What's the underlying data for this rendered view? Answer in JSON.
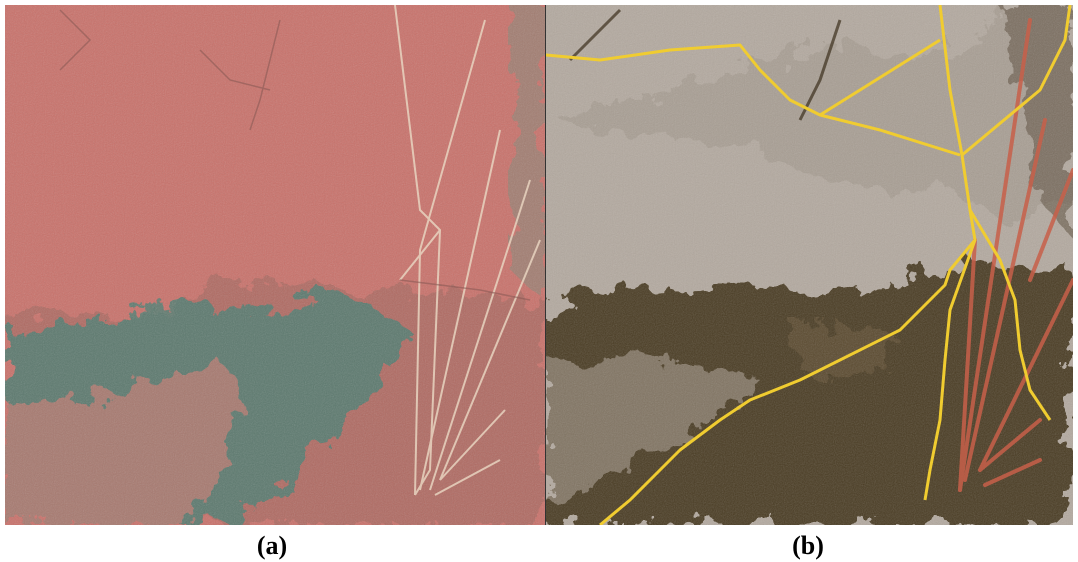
{
  "panels": [
    {
      "caption": "(a)"
    },
    {
      "caption": "(b)"
    }
  ]
}
